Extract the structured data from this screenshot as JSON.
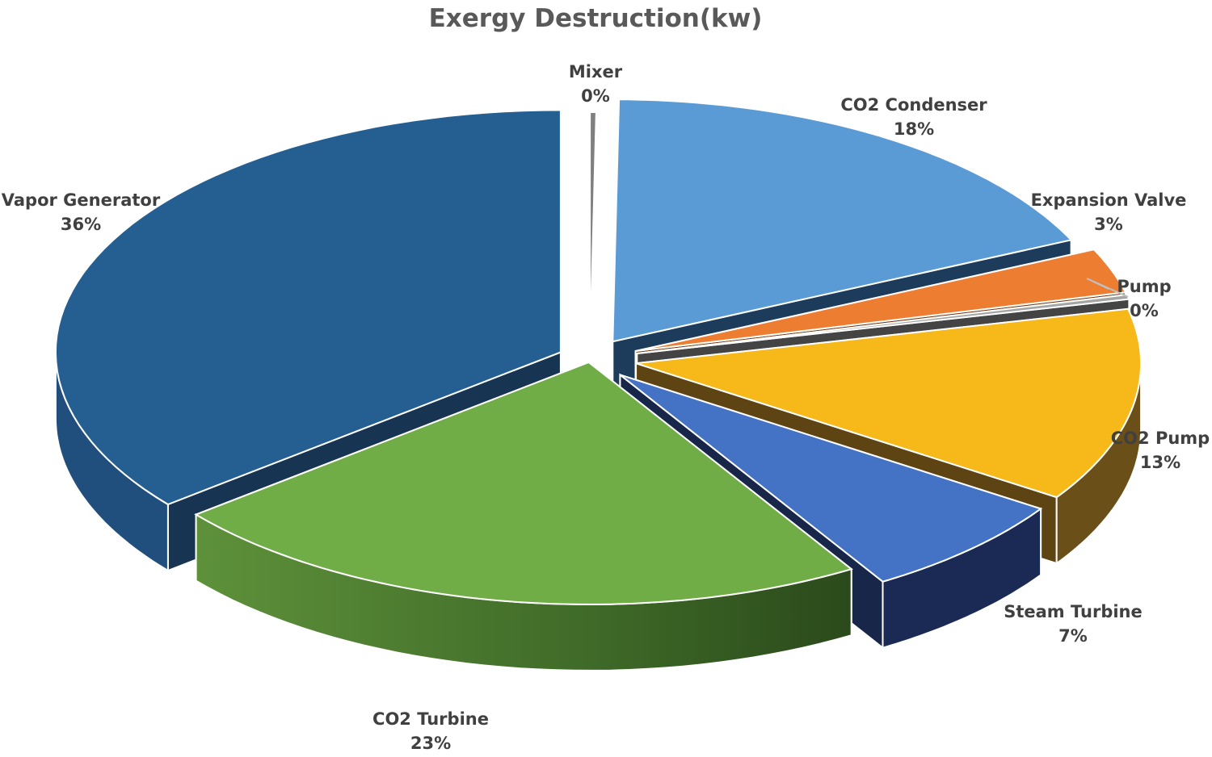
{
  "chart_data": {
    "type": "pie",
    "style": "3d-exploded",
    "title": "Exergy Destruction(kw)",
    "slices": [
      {
        "key": "mixer",
        "label": "Mixer",
        "percent_label": "0%",
        "value": 0.2,
        "color": "#7f7f7f"
      },
      {
        "key": "co2-condenser",
        "label": "CO2 Condenser",
        "percent_label": "18%",
        "value": 18,
        "color": "#5b9bd5"
      },
      {
        "key": "expansion-valve",
        "label": "Expansion Valve",
        "percent_label": "3%",
        "value": 3,
        "color": "#ed7d31"
      },
      {
        "key": "pump",
        "label": "Pump",
        "percent_label": "0%",
        "value": 0.3,
        "color": "#a5a5a5"
      },
      {
        "key": "co2-pump",
        "label": "CO2 Pump",
        "percent_label": "13%",
        "value": 13,
        "color": "#f6b919"
      },
      {
        "key": "steam-turbine",
        "label": "Steam Turbine",
        "percent_label": "7%",
        "value": 7,
        "color": "#4472c4"
      },
      {
        "key": "co2-turbine",
        "label": "CO2 Turbine",
        "percent_label": "23%",
        "value": 23,
        "color": "#70ad47"
      },
      {
        "key": "vapor-generator",
        "label": "Vapor Generator",
        "percent_label": "36%",
        "value": 36,
        "color": "#255e91"
      }
    ]
  }
}
